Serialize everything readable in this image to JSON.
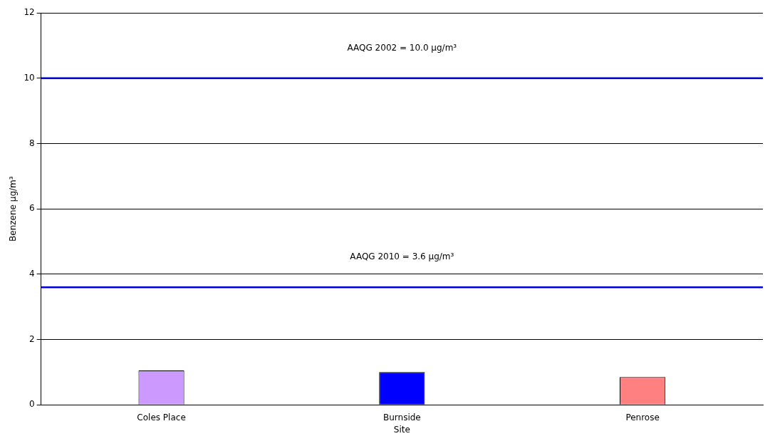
{
  "chart_data": {
    "type": "bar",
    "xlabel": "Site",
    "ylabel": "Benzene µg/m³",
    "categories": [
      "Coles Place",
      "Burnside",
      "Penrose"
    ],
    "values": [
      1.05,
      1.0,
      0.85
    ],
    "colors": [
      "#cc99ff",
      "#0000ff",
      "#ff8080"
    ],
    "ylim": [
      0,
      12
    ],
    "yticks": [
      0,
      2,
      4,
      6,
      8,
      10,
      12
    ],
    "grid": "y",
    "legend": false,
    "ref_lines": [
      {
        "axis": "y",
        "value": 10.0,
        "label": "AAQG 2002 = 10.0 µg/m³",
        "color": "#0000cc"
      },
      {
        "axis": "y",
        "value": 3.6,
        "label": "AAQG 2010 = 3.6 µg/m³",
        "color": "#0000cc"
      }
    ]
  }
}
